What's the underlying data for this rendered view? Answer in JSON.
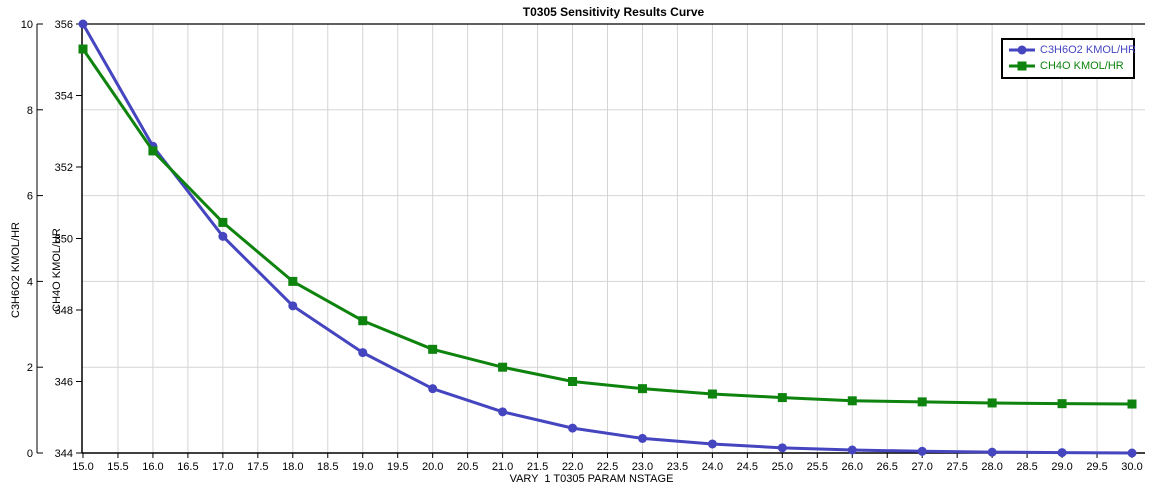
{
  "chart_data": {
    "type": "line",
    "title": "T0305 Sensitivity Results Curve",
    "xlabel": "VARY  1 T0305 PARAM NSTAGE",
    "x": [
      15,
      16,
      17,
      18,
      19,
      20,
      21,
      22,
      23,
      24,
      25,
      26,
      27,
      28,
      29,
      30
    ],
    "series": [
      {
        "name": "C3H6O2 KMOL/HR",
        "axis": "left_outer",
        "color": "#4545c0",
        "marker": "circle",
        "values": [
          10.0,
          7.15,
          5.05,
          3.43,
          2.34,
          1.5,
          0.96,
          0.58,
          0.34,
          0.21,
          0.12,
          0.07,
          0.04,
          0.02,
          0.01,
          0.0
        ]
      },
      {
        "name": "CH4O KMOL/HR",
        "axis": "left_inner",
        "color": "#0e830e",
        "marker": "square",
        "values": [
          355.3,
          352.45,
          350.45,
          348.8,
          347.7,
          346.9,
          346.4,
          346.0,
          345.8,
          345.65,
          345.55,
          345.46,
          345.43,
          345.4,
          345.38,
          345.37
        ]
      }
    ],
    "axes": {
      "x": {
        "min": 15.0,
        "max": 30.0,
        "tick_step": 0.5,
        "tick_labels": [
          "15.0",
          "15.5",
          "16.0",
          "16.5",
          "17.0",
          "17.5",
          "18.0",
          "18.5",
          "19.0",
          "19.5",
          "20.0",
          "20.5",
          "21.0",
          "21.5",
          "22.0",
          "22.5",
          "23.0",
          "23.5",
          "24.0",
          "24.5",
          "25.0",
          "25.5",
          "26.0",
          "26.5",
          "27.0",
          "27.5",
          "28.0",
          "28.5",
          "29.0",
          "29.5",
          "30.0"
        ]
      },
      "left_outer": {
        "label": "C3H6O2 KMOL/HR",
        "min": 0,
        "max": 10,
        "ticks": [
          0,
          2,
          4,
          6,
          8,
          10
        ],
        "tick_labels": [
          "0",
          "2",
          "4",
          "6",
          "8",
          "10"
        ]
      },
      "left_inner": {
        "label": "CH4O KMOL/HR",
        "min": 344,
        "max": 356,
        "ticks": [
          344,
          346,
          348,
          350,
          352,
          354,
          356
        ],
        "tick_labels": [
          "344",
          "346",
          "348",
          "350",
          "352",
          "354",
          "356"
        ]
      }
    },
    "legend": {
      "position": "top-right",
      "entries": [
        {
          "label": "C3H6O2 KMOL/HR",
          "color": "#4545c0",
          "marker": "circle"
        },
        {
          "label": "CH4O KMOL/HR",
          "color": "#0e830e",
          "marker": "square"
        }
      ]
    },
    "grid": true,
    "colors": {
      "grid": "#d5d5d5",
      "axis": "#000000",
      "background": "#ffffff",
      "text": "#000000"
    }
  }
}
